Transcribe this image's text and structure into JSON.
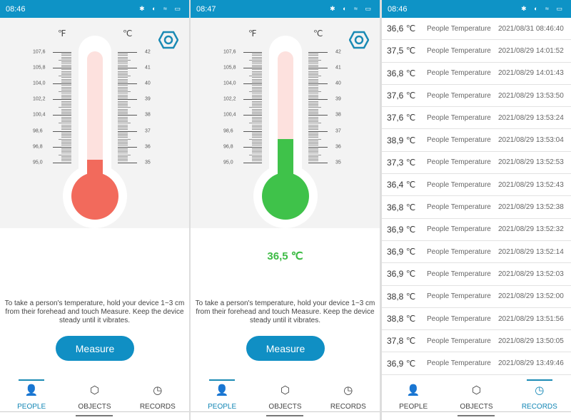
{
  "panels": [
    {
      "time": "08:46",
      "reading": "",
      "fill_color": "#f26a5c",
      "temperature_c": 35.2
    },
    {
      "time": "08:47",
      "reading": "36,5 ℃",
      "fill_color": "#3fc24a",
      "temperature_c": 36.5
    },
    {
      "time": "08:46"
    }
  ],
  "scale": {
    "fahrenheit_unit": "℉",
    "celsius_unit": "℃",
    "fahrenheit": [
      "107,6",
      "105,8",
      "104,0",
      "102,2",
      "100,4",
      "98,6",
      "96,8",
      "95,0"
    ],
    "celsius": [
      "42",
      "41",
      "40",
      "39",
      "38",
      "37",
      "36",
      "35"
    ]
  },
  "instructions": "To take a person's temperature, hold your device 1~3 cm from their forehead and touch Measure. Keep the device steady until it vibrates.",
  "measure_label": "Measure",
  "nav": [
    "PEOPLE",
    "OBJECTS",
    "RECORDS"
  ],
  "records": [
    {
      "temp": "36,6 ℃",
      "type": "People Temperature",
      "date": "2021/08/31 08:46:40"
    },
    {
      "temp": "37,5 ℃",
      "type": "People Temperature",
      "date": "2021/08/29 14:01:52"
    },
    {
      "temp": "36,8 ℃",
      "type": "People Temperature",
      "date": "2021/08/29 14:01:43"
    },
    {
      "temp": "37,6 ℃",
      "type": "People Temperature",
      "date": "2021/08/29 13:53:50"
    },
    {
      "temp": "37,6 ℃",
      "type": "People Temperature",
      "date": "2021/08/29 13:53:24"
    },
    {
      "temp": "38,9 ℃",
      "type": "People Temperature",
      "date": "2021/08/29 13:53:04"
    },
    {
      "temp": "37,3 ℃",
      "type": "People Temperature",
      "date": "2021/08/29 13:52:53"
    },
    {
      "temp": "36,4 ℃",
      "type": "People Temperature",
      "date": "2021/08/29 13:52:43"
    },
    {
      "temp": "36,8 ℃",
      "type": "People Temperature",
      "date": "2021/08/29 13:52:38"
    },
    {
      "temp": "36,9 ℃",
      "type": "People Temperature",
      "date": "2021/08/29 13:52:32"
    },
    {
      "temp": "36,9 ℃",
      "type": "People Temperature",
      "date": "2021/08/29 13:52:14"
    },
    {
      "temp": "36,9 ℃",
      "type": "People Temperature",
      "date": "2021/08/29 13:52:03"
    },
    {
      "temp": "38,8 ℃",
      "type": "People Temperature",
      "date": "2021/08/29 13:52:00"
    },
    {
      "temp": "38,8 ℃",
      "type": "People Temperature",
      "date": "2021/08/29 13:51:56"
    },
    {
      "temp": "37,8 ℃",
      "type": "People Temperature",
      "date": "2021/08/29 13:50:05"
    },
    {
      "temp": "36,9 ℃",
      "type": "People Temperature",
      "date": "2021/08/29 13:49:46"
    }
  ]
}
